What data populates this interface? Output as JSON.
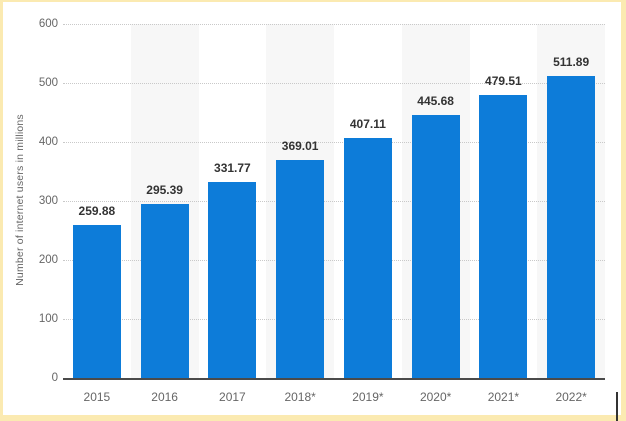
{
  "chart_data": {
    "type": "bar",
    "categories": [
      "2015",
      "2016",
      "2017",
      "2018*",
      "2019*",
      "2020*",
      "2021*",
      "2022*"
    ],
    "values": [
      259.88,
      295.39,
      331.77,
      369.01,
      407.11,
      445.68,
      479.51,
      511.89
    ],
    "value_labels": [
      "259.88",
      "295.39",
      "331.77",
      "369.01",
      "407.11",
      "445.68",
      "479.51",
      "511.89"
    ],
    "title": "",
    "xlabel": "",
    "ylabel": "Number of internet users in millions",
    "ylim": [
      0,
      600
    ],
    "yticks": [
      600,
      500,
      400,
      300,
      200,
      100,
      0
    ],
    "grid": "horizontal-dotted",
    "legend": "none",
    "bar_color": "#0d7cd9",
    "band_color": "#f7f7f7",
    "alternating_column_bands": true
  },
  "frame": {
    "border_color": "#fbeab1",
    "background_color": "#ffffff"
  }
}
